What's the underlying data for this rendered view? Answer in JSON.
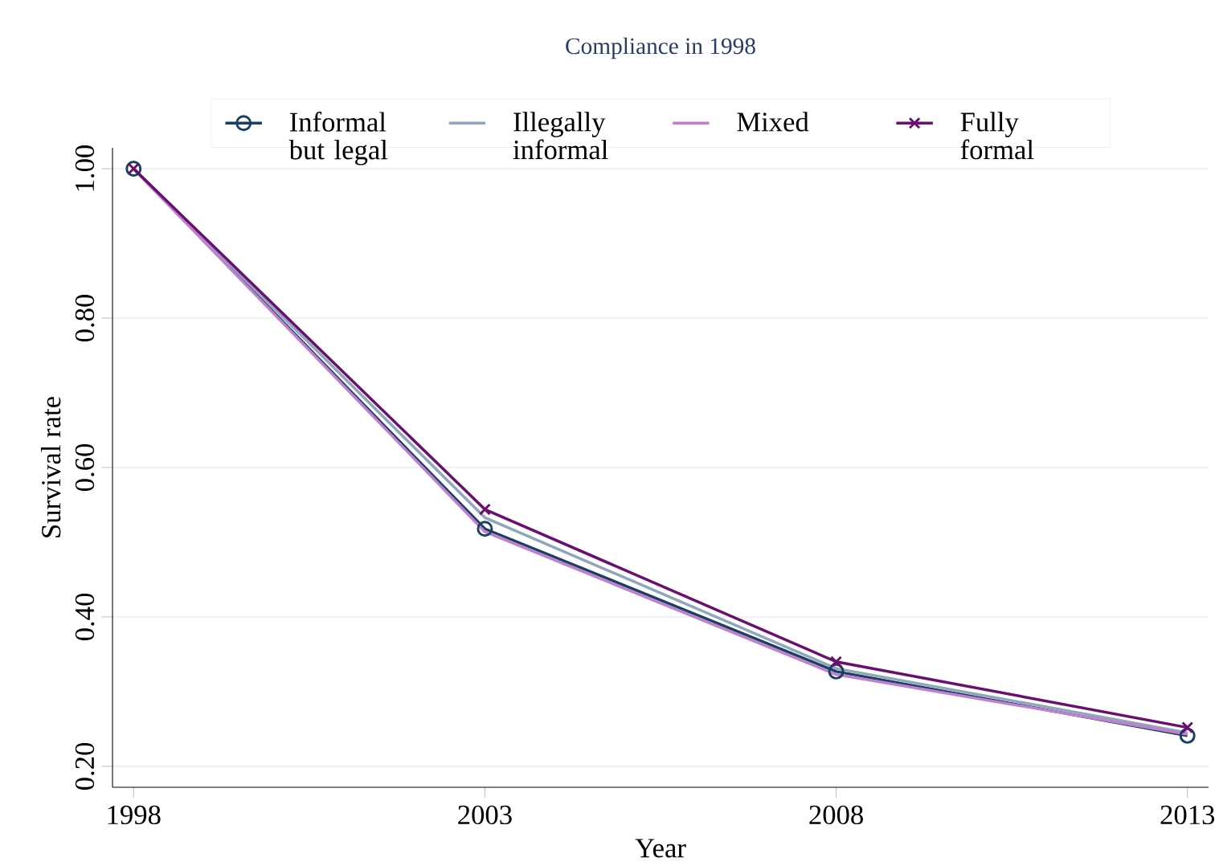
{
  "chart_data": {
    "type": "line",
    "legend_title": "Compliance in 1998",
    "xlabel": "Year",
    "ylabel": "Survival rate",
    "x": [
      1998,
      2003,
      2008,
      2013
    ],
    "series": [
      {
        "name": "Informal but legal",
        "color": "#1a3f5f",
        "marker": "circle",
        "values": [
          1.0,
          0.518,
          0.327,
          0.241
        ]
      },
      {
        "name": "Illegally informal",
        "color": "#8fa6bd",
        "marker": "none",
        "values": [
          1.0,
          0.533,
          0.331,
          0.245
        ]
      },
      {
        "name": "Mixed",
        "color": "#c07fcf",
        "marker": "none",
        "values": [
          1.0,
          0.514,
          0.323,
          0.243
        ]
      },
      {
        "name": "Fully formal",
        "color": "#6a0f6f",
        "marker": "cross",
        "values": [
          1.0,
          0.544,
          0.34,
          0.252
        ]
      }
    ],
    "xlim": [
      1997.7,
      2013.3
    ],
    "ylim": [
      0.172,
      1.028
    ],
    "xticks": [
      1998,
      2003,
      2008,
      2013
    ],
    "yticks": [
      {
        "value": 0.2,
        "label": "0.20"
      },
      {
        "value": 0.4,
        "label": "0.40"
      },
      {
        "value": 0.6,
        "label": "0.60"
      },
      {
        "value": 0.8,
        "label": "0.80"
      },
      {
        "value": 1.0,
        "label": "1.00"
      }
    ],
    "grid": "y",
    "legend": "top"
  }
}
